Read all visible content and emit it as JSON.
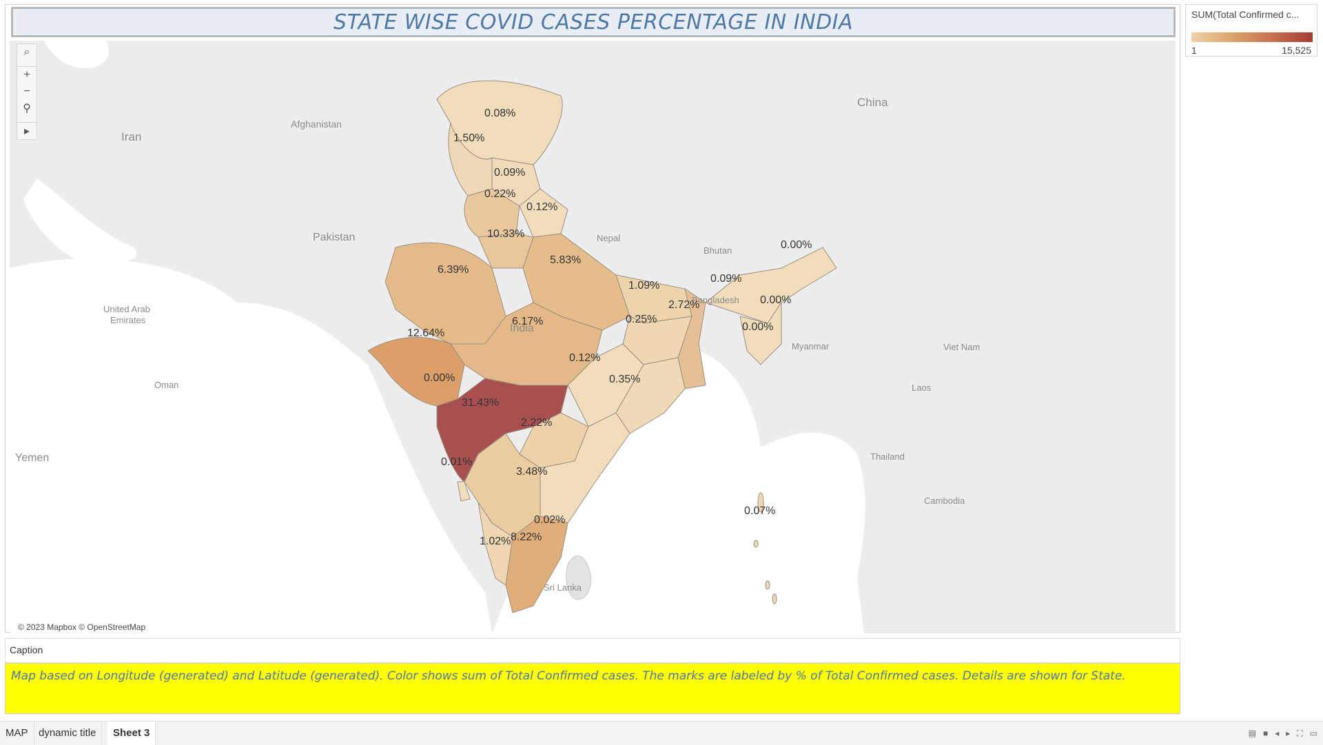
{
  "title": "STATE WISE COVID CASES PERCENTAGE IN INDIA",
  "map": {
    "attribution": "© 2023 Mapbox © OpenStreetMap",
    "tools": [
      {
        "icon": "search-icon",
        "glyph": "⌕"
      },
      {
        "icon": "zoom-in-icon",
        "glyph": "+"
      },
      {
        "icon": "zoom-out-icon",
        "glyph": "−"
      },
      {
        "icon": "pin-icon",
        "glyph": "⚲"
      },
      {
        "icon": "play-icon",
        "glyph": "▸"
      }
    ],
    "geo_labels": {
      "china": "China",
      "iran": "Iran",
      "afghanistan": "Afghanistan",
      "pakistan": "Pakistan",
      "nepal": "Nepal",
      "bhutan": "Bhutan",
      "bangladesh": "Bangladesh",
      "india": "India",
      "myanmar": "Myanmar",
      "viet_nam": "Viet Nam",
      "laos": "Laos",
      "thailand": "Thailand",
      "cambodia": "Cambodia",
      "sri_lanka": "Sri Lanka",
      "oman": "Oman",
      "uae_line1": "United Arab",
      "uae_line2": "Emirates",
      "yemen": "Yemen"
    },
    "state_labels": {
      "jammu_kashmir": "0.08%",
      "ladakh": "1.50%",
      "himachal": "0.09%",
      "punjab": "0.22%",
      "uttarakhand": "0.12%",
      "delhi": "10.33%",
      "rajasthan": "6.39%",
      "uttar_pradesh": "5.83%",
      "bihar": "1.09%",
      "west_bengal": "2.72%",
      "gujarat": "12.64%",
      "madhya_pradesh": "6.17%",
      "jharkhand": "0.25%",
      "chhattisgarh": "0.12%",
      "odisha": "0.35%",
      "daman_diu": "0.00%",
      "maharashtra": "31.43%",
      "telangana": "2.22%",
      "goa": "0.01%",
      "karnataka": "3.48%",
      "puducherry": "0.02%",
      "tamil_nadu": "8.22%",
      "kerala": "1.02%",
      "andaman": "0.07%",
      "arunachal": "0.00%",
      "meghalaya": "0.09%",
      "manipur": "0.00%",
      "mizoram": "0.00%"
    },
    "colors": {
      "low": "#f1dcbc",
      "mid_low": "#e7c08f",
      "mid": "#e3b688",
      "high": "#d99d68",
      "max": "#a8504f",
      "land": "#ececec",
      "sea": "#ffffff"
    }
  },
  "legend": {
    "title": "SUM(Total Confirmed c...",
    "min": "1",
    "max": "15,525"
  },
  "caption": {
    "header": "Caption",
    "text": "Map based on Longitude (generated) and Latitude (generated).  Color shows sum of Total Confirmed cases.  The marks are labeled by % of Total Confirmed cases.  Details are shown for State."
  },
  "tabs": [
    {
      "label": "MAP",
      "active": false
    },
    {
      "label": "dynamic title",
      "active": false
    },
    {
      "label": "Sheet 3",
      "active": true
    }
  ]
}
